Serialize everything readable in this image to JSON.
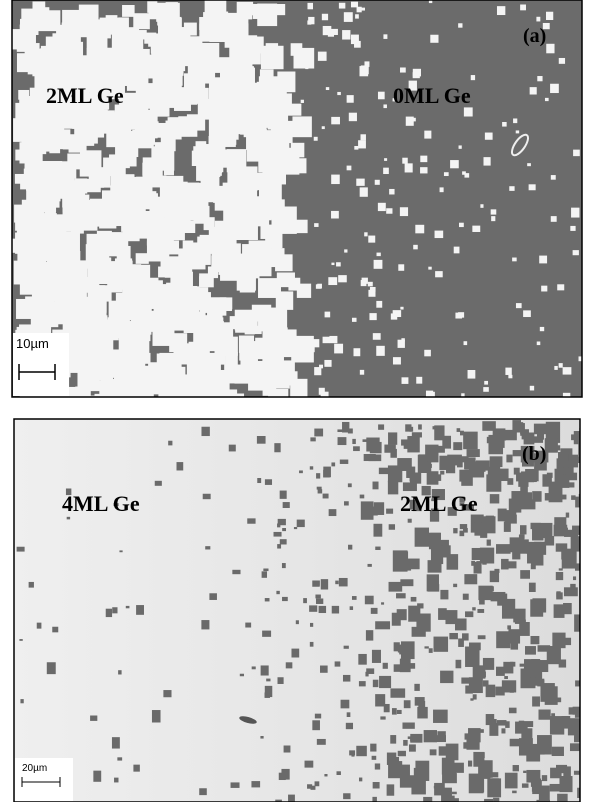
{
  "panels": [
    {
      "tag": "(a)",
      "regions": [
        "2ML Ge",
        "0ML Ge"
      ],
      "scale_bar": "10µm"
    },
    {
      "tag": "(b)",
      "regions": [
        "4ML Ge",
        "2ML Ge"
      ],
      "scale_bar": "20µm"
    }
  ]
}
